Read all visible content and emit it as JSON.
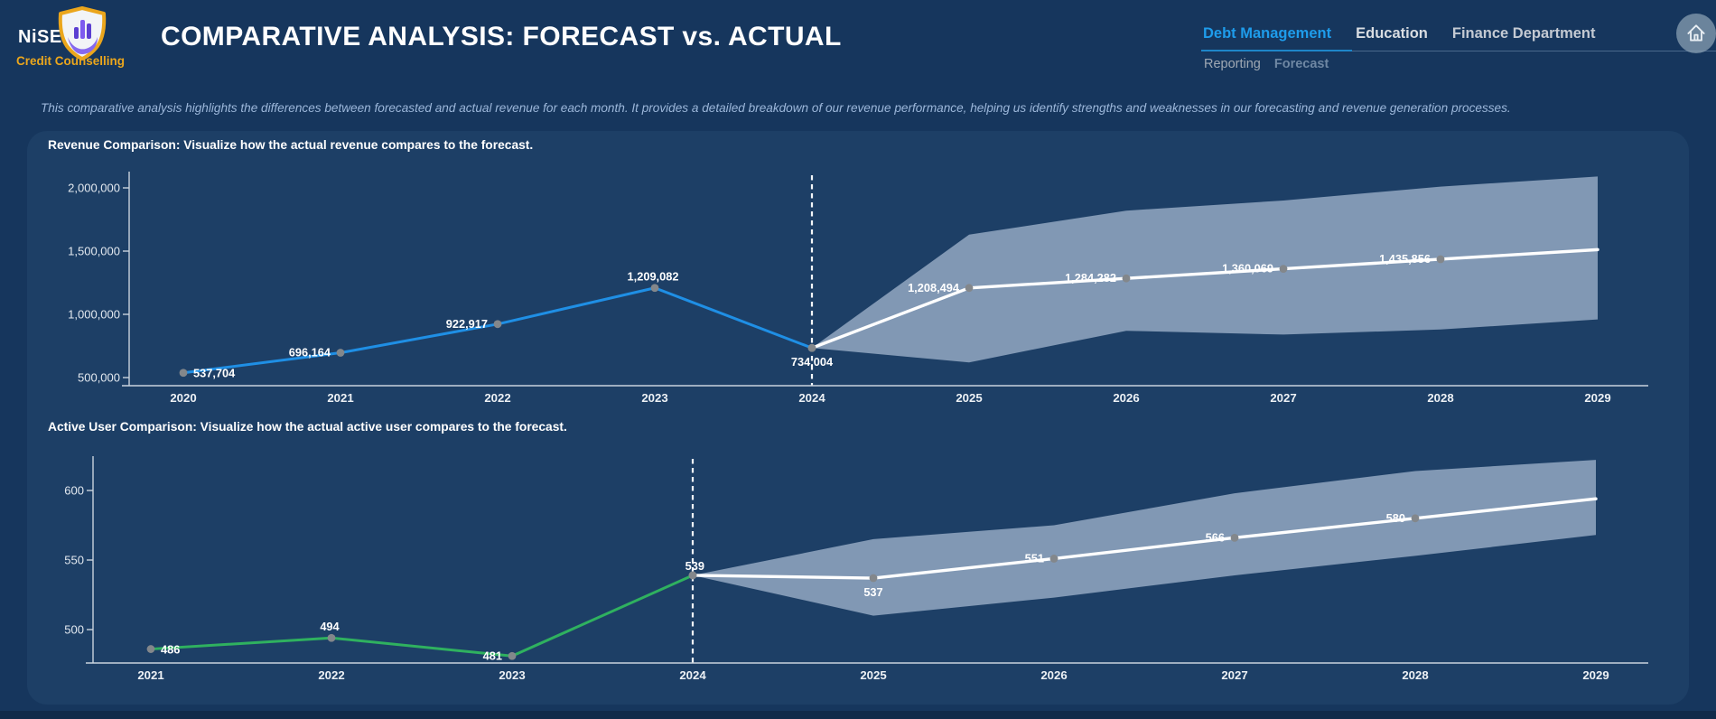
{
  "header": {
    "brand": {
      "name": "NiSE",
      "tagline": "Credit Counselling"
    },
    "title": "COMPARATIVE ANALYSIS: FORECAST vs. ACTUAL",
    "nav_primary": [
      {
        "label": "Debt Management",
        "active": true
      },
      {
        "label": "Education",
        "active": false
      },
      {
        "label": "Finance Department",
        "active": false
      }
    ],
    "nav_secondary": [
      {
        "label": "Reporting",
        "active": false
      },
      {
        "label": "Forecast",
        "active": true
      }
    ]
  },
  "subtitle": "This comparative analysis highlights the differences between forecasted and actual revenue for each month. It provides a detailed breakdown of our revenue performance, helping us identify strengths and weaknesses in our forecasting and revenue generation processes.",
  "colors": {
    "page_bg": "#16365D",
    "panel_bg": "#1D3F66",
    "accent_blue": "#1E9CEB",
    "actual_blue": "#1F8FE5",
    "actual_green": "#2FB15F",
    "forecast_white": "#FFFFFF",
    "band": "rgba(196,212,232,0.6)",
    "marker_gray": "#83878B",
    "gold": "#EBA61C",
    "purple": "#7E5BEF"
  },
  "chart_data": [
    {
      "type": "line",
      "title": "Revenue Comparison: Visualize how the actual revenue compares to the forecast.",
      "x_ticks": [
        "2020",
        "2021",
        "2022",
        "2023",
        "2024",
        "2025",
        "2026",
        "2027",
        "2028",
        "2029"
      ],
      "y_ticks": [
        {
          "value": 500000,
          "label": "500,000"
        },
        {
          "value": 1000000,
          "label": "1,000,000"
        },
        {
          "value": 1500000,
          "label": "1,500,000"
        },
        {
          "value": 2000000,
          "label": "2,000,000"
        }
      ],
      "ylim": [
        435000,
        2115000
      ],
      "grid": false,
      "legend": null,
      "forecast_split_x": "2024",
      "series": [
        {
          "name": "actual",
          "points": [
            {
              "x": "2020",
              "y": 537704,
              "label": "537,704",
              "label_pos": "right"
            },
            {
              "x": "2021",
              "y": 696164,
              "label": "696,164",
              "label_pos": "left"
            },
            {
              "x": "2022",
              "y": 922917,
              "label": "922,917",
              "label_pos": "left"
            },
            {
              "x": "2023",
              "y": 1209082,
              "label": "1,209,082",
              "label_pos": "above"
            },
            {
              "x": "2024",
              "y": 734004,
              "label": "734,004",
              "label_pos": "below"
            }
          ]
        },
        {
          "name": "forecast",
          "points": [
            {
              "x": "2024",
              "y": 734004,
              "label": null
            },
            {
              "x": "2025",
              "y": 1208494,
              "label": "1,208,494",
              "label_pos": "left"
            },
            {
              "x": "2026",
              "y": 1284282,
              "label": "1,284,282",
              "label_pos": "left"
            },
            {
              "x": "2027",
              "y": 1360069,
              "label": "1,360,069",
              "label_pos": "left"
            },
            {
              "x": "2028",
              "y": 1435856,
              "label": "1,435,856",
              "label_pos": "left"
            },
            {
              "x": "2029",
              "y": 1511643,
              "label": null,
              "no_dot": true
            }
          ]
        }
      ],
      "band": {
        "x": [
          "2024",
          "2025",
          "2026",
          "2027",
          "2028",
          "2029"
        ],
        "upper": [
          734004,
          1630000,
          1820000,
          1900000,
          2010000,
          2090000
        ],
        "lower": [
          734004,
          620000,
          870000,
          840000,
          880000,
          960000
        ]
      }
    },
    {
      "type": "line",
      "title": "Active User Comparison: Visualize how the actual active user compares to the forecast.",
      "x_ticks": [
        "2021",
        "2022",
        "2023",
        "2024",
        "2025",
        "2026",
        "2027",
        "2028",
        "2029"
      ],
      "y_ticks": [
        {
          "value": 500,
          "label": "500"
        },
        {
          "value": 550,
          "label": "550"
        },
        {
          "value": 600,
          "label": "600"
        }
      ],
      "ylim": [
        476,
        628
      ],
      "grid": false,
      "legend": null,
      "forecast_split_x": "2024",
      "series": [
        {
          "name": "actual",
          "points": [
            {
              "x": "2021",
              "y": 486,
              "label": "486",
              "label_pos": "right"
            },
            {
              "x": "2022",
              "y": 494,
              "label": "494",
              "label_pos": "above"
            },
            {
              "x": "2023",
              "y": 481,
              "label": "481",
              "label_pos": "left"
            },
            {
              "x": "2024",
              "y": 539,
              "label": "539",
              "label_pos": "above-end"
            }
          ]
        },
        {
          "name": "forecast",
          "points": [
            {
              "x": "2024",
              "y": 539,
              "label": null
            },
            {
              "x": "2025",
              "y": 537,
              "label": "537",
              "label_pos": "below"
            },
            {
              "x": "2026",
              "y": 551,
              "label": "551",
              "label_pos": "left"
            },
            {
              "x": "2027",
              "y": 566,
              "label": "566",
              "label_pos": "left"
            },
            {
              "x": "2028",
              "y": 580,
              "label": "580",
              "label_pos": "left"
            },
            {
              "x": "2029",
              "y": 594,
              "label": null,
              "no_dot": true
            }
          ]
        }
      ],
      "band": {
        "x": [
          "2024",
          "2025",
          "2026",
          "2027",
          "2028",
          "2029"
        ],
        "upper": [
          539,
          565,
          575,
          598,
          614,
          622
        ],
        "lower": [
          539,
          510,
          523,
          539,
          553,
          568
        ]
      }
    }
  ]
}
